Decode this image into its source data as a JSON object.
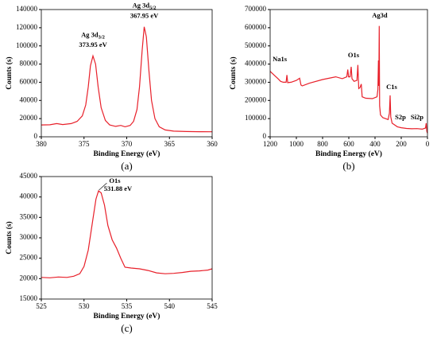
{
  "chart_data": [
    {
      "type": "line",
      "caption": "(a)",
      "x_label": "Binding Energy (eV)",
      "y_label": "Counts (s)",
      "xlim": [
        380,
        360
      ],
      "xticks": [
        380,
        375,
        370,
        365,
        360
      ],
      "ylim": [
        0,
        140000
      ],
      "yticks": [
        0,
        20000,
        40000,
        60000,
        80000,
        100000,
        120000,
        140000
      ],
      "series": [
        {
          "color": "#e8202a",
          "x": [
            380,
            379,
            378.2,
            377.5,
            376.5,
            375.8,
            375.2,
            374.8,
            374.5,
            374.25,
            373.95,
            373.65,
            373.35,
            373,
            372.5,
            372,
            371.3,
            370.7,
            370.2,
            369.6,
            369.2,
            368.8,
            368.5,
            368.2,
            367.95,
            367.7,
            367.4,
            367.1,
            366.7,
            366.2,
            365.5,
            364.5,
            363,
            361.5,
            360
          ],
          "values": [
            13000,
            13200,
            14500,
            13500,
            14500,
            17000,
            23000,
            35000,
            55000,
            78000,
            89000,
            80000,
            55000,
            32000,
            18000,
            13000,
            11500,
            12500,
            11000,
            12500,
            17000,
            30000,
            55000,
            95000,
            121000,
            110000,
            72000,
            40000,
            20000,
            11000,
            7500,
            6200,
            5800,
            5600,
            5500
          ]
        }
      ],
      "annotations": [
        {
          "label": "Ag 3d",
          "sub": "3/2",
          "energy": "373.95 eV",
          "x": 373.95,
          "y": 89000
        },
        {
          "label": "Ag 3d",
          "sub": "5/2",
          "energy": "367.95 eV",
          "x": 367.95,
          "y": 121000
        }
      ]
    },
    {
      "type": "line",
      "caption": "(b)",
      "x_label": "Binding Energy (eV)",
      "y_label": "Counts (s)",
      "xlim": [
        1200,
        0
      ],
      "xticks": [
        1200,
        1000,
        800,
        600,
        400,
        200,
        0
      ],
      "ylim": [
        0,
        700000
      ],
      "yticks": [
        0,
        100000,
        200000,
        300000,
        400000,
        500000,
        600000,
        700000
      ],
      "series": [
        {
          "color": "#e8202a",
          "x": [
            1200,
            1170,
            1140,
            1120,
            1100,
            1078,
            1072,
            1066,
            1040,
            1000,
            975,
            965,
            955,
            900,
            800,
            700,
            650,
            615,
            608,
            602,
            590,
            582,
            576,
            560,
            538,
            531,
            524,
            515,
            505,
            498,
            480,
            470,
            420,
            385,
            378,
            374,
            371,
            368,
            365,
            358,
            340,
            300,
            290,
            285,
            280,
            270,
            230,
            200,
            160,
            120,
            80,
            40,
            15,
            10,
            5,
            0
          ],
          "values": [
            360000,
            340000,
            320000,
            305000,
            300000,
            300000,
            340000,
            298000,
            300000,
            310000,
            322000,
            285000,
            280000,
            295000,
            315000,
            330000,
            320000,
            330000,
            370000,
            330000,
            330000,
            385000,
            320000,
            305000,
            310000,
            395000,
            265000,
            270000,
            290000,
            220000,
            215000,
            212000,
            210000,
            220000,
            260000,
            420000,
            280000,
            610000,
            170000,
            120000,
            105000,
            95000,
            130000,
            228000,
            110000,
            75000,
            55000,
            50000,
            46000,
            44000,
            45000,
            42000,
            48000,
            75000,
            30000,
            20000
          ]
        }
      ],
      "annotations": [
        {
          "label": "Na1s",
          "x": 1127,
          "y": 424000
        },
        {
          "label": "O1s",
          "x": 564,
          "y": 446000
        },
        {
          "label": "Ag3d",
          "x": 364,
          "y": 665000
        },
        {
          "label": "C1s",
          "x": 273,
          "y": 271000
        },
        {
          "label": "S2p",
          "x": 206,
          "y": 105000
        },
        {
          "label": "Si2p",
          "x": 79,
          "y": 105000
        }
      ]
    },
    {
      "type": "line",
      "caption": "(c)",
      "x_label": "Binding Energy (eV)",
      "y_label": "Counts (s)",
      "xlim": [
        525,
        545
      ],
      "xticks": [
        525,
        530,
        535,
        540,
        545
      ],
      "ylim": [
        15000,
        45000
      ],
      "yticks": [
        15000,
        20000,
        25000,
        30000,
        35000,
        40000,
        45000
      ],
      "series": [
        {
          "color": "#e8202a",
          "x": [
            525,
            526,
            527,
            528,
            528.8,
            529.5,
            530,
            530.5,
            531,
            531.4,
            531.7,
            532,
            532.4,
            532.8,
            533.3,
            533.8,
            534.3,
            534.8,
            535.5,
            536.5,
            537.5,
            538.5,
            539.5,
            540.5,
            541.5,
            542.5,
            543.5,
            544.5,
            545
          ],
          "values": [
            20300,
            20200,
            20400,
            20300,
            20600,
            21200,
            23000,
            27000,
            34000,
            39500,
            41500,
            41000,
            38000,
            33000,
            29500,
            27500,
            25000,
            22800,
            22600,
            22400,
            22000,
            21400,
            21200,
            21300,
            21500,
            21800,
            21900,
            22100,
            22400
          ]
        }
      ],
      "annotations": [
        {
          "label": "O1s",
          "energy": "531.88 eV",
          "x": 533.6,
          "y": 43800
        }
      ]
    }
  ]
}
